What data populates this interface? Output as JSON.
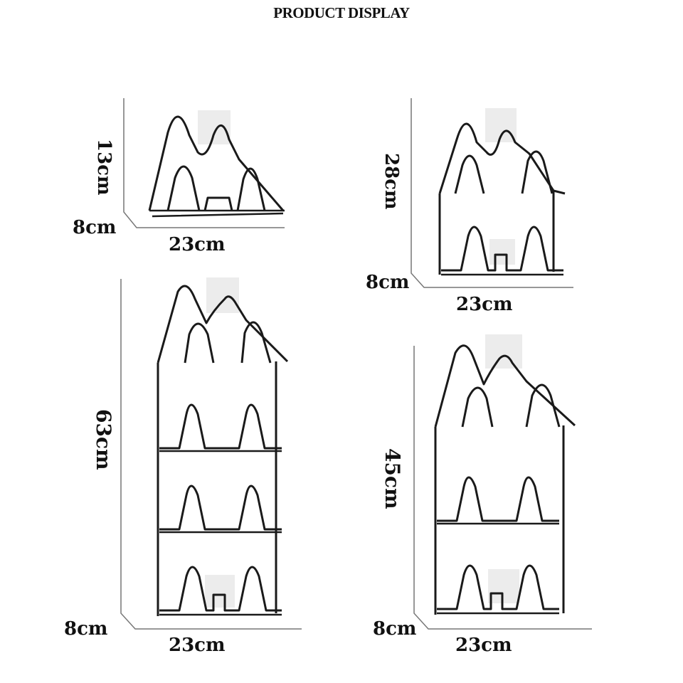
{
  "title": "PRODUCT DISPLAY",
  "colors": {
    "wire": "#1a1a1a",
    "hook_pad": "#e8e8e8",
    "axis": "#777777",
    "text": "#111111"
  },
  "racks": [
    {
      "id": "small",
      "tiers": 1,
      "height": "13cm",
      "depth": "8cm",
      "width": "23cm"
    },
    {
      "id": "two-tier",
      "tiers": 2,
      "height": "28cm",
      "depth": "8cm",
      "width": "23cm"
    },
    {
      "id": "four-tier",
      "tiers": 4,
      "height": "63cm",
      "depth": "8cm",
      "width": "23cm"
    },
    {
      "id": "three-tier",
      "tiers": 3,
      "height": "45cm",
      "depth": "8cm",
      "width": "23cm"
    }
  ]
}
